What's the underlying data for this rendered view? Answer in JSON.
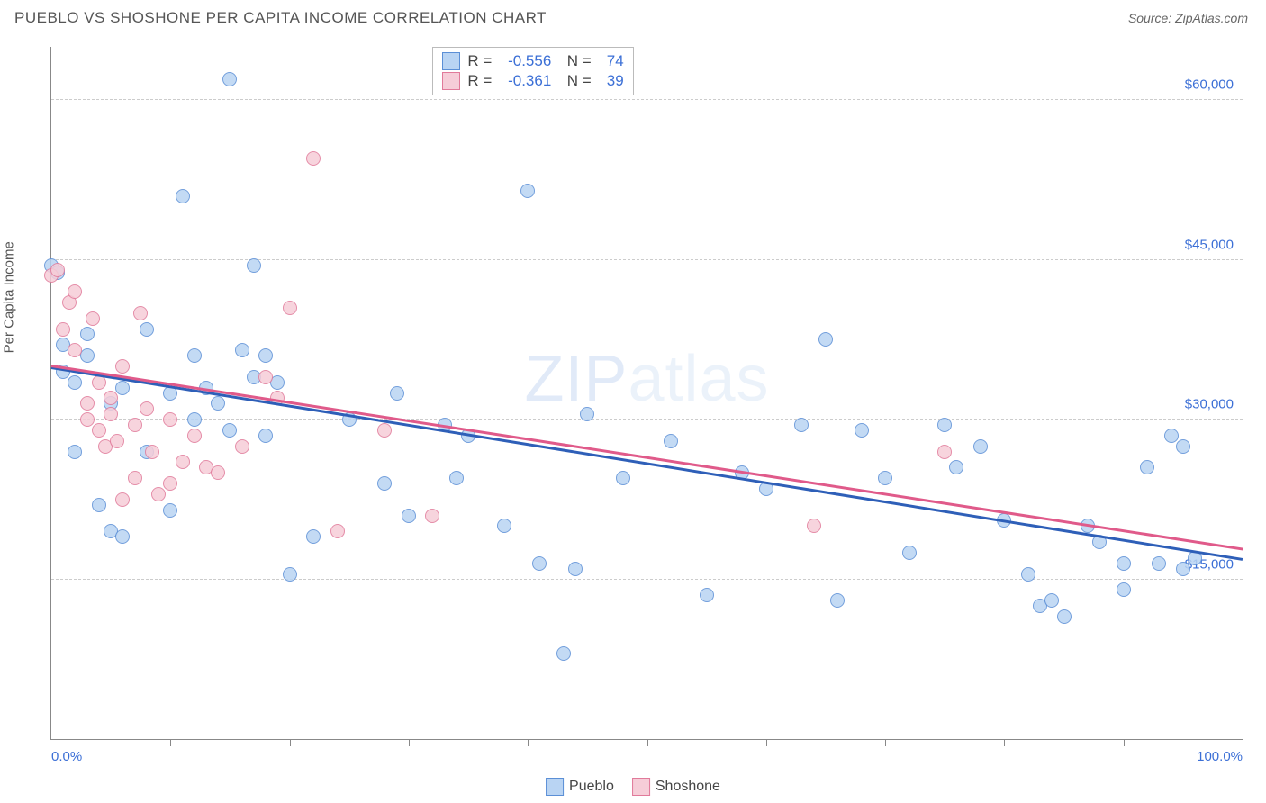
{
  "title": "PUEBLO VS SHOSHONE PER CAPITA INCOME CORRELATION CHART",
  "source": "Source: ZipAtlas.com",
  "ylabel": "Per Capita Income",
  "watermark_a": "ZIP",
  "watermark_b": "atlas",
  "chart": {
    "type": "scatter",
    "xlim": [
      0,
      100
    ],
    "ylim": [
      0,
      65000
    ],
    "x_min_label": "0.0%",
    "x_max_label": "100.0%",
    "y_ticks": [
      15000,
      30000,
      45000,
      60000
    ],
    "y_tick_labels": [
      "$15,000",
      "$30,000",
      "$45,000",
      "$60,000"
    ],
    "x_tick_positions": [
      10,
      20,
      30,
      40,
      50,
      60,
      70,
      80,
      90
    ],
    "grid_color": "#cccccc",
    "background_color": "#ffffff",
    "axis_label_color": "#3b6fd6",
    "marker_radius": 8,
    "marker_border": 1
  },
  "series": [
    {
      "name": "Pueblo",
      "fill": "#b9d4f3",
      "stroke": "#5b8fd6",
      "trend_color": "#2e5fb8",
      "R": "-0.556",
      "N": "74",
      "trend": {
        "x1": 0,
        "y1": 35000,
        "x2": 100,
        "y2": 17000
      },
      "points": [
        [
          0,
          44500
        ],
        [
          0.5,
          43800
        ],
        [
          1,
          37000
        ],
        [
          1,
          34500
        ],
        [
          2,
          33500
        ],
        [
          2,
          27000
        ],
        [
          3,
          36000
        ],
        [
          3,
          38000
        ],
        [
          4,
          22000
        ],
        [
          5,
          19500
        ],
        [
          5,
          31500
        ],
        [
          6,
          33000
        ],
        [
          6,
          19000
        ],
        [
          8,
          38500
        ],
        [
          8,
          27000
        ],
        [
          10,
          32500
        ],
        [
          10,
          21500
        ],
        [
          11,
          51000
        ],
        [
          12,
          36000
        ],
        [
          12,
          30000
        ],
        [
          13,
          33000
        ],
        [
          14,
          31500
        ],
        [
          15,
          62000
        ],
        [
          15,
          29000
        ],
        [
          16,
          36500
        ],
        [
          17,
          44500
        ],
        [
          17,
          34000
        ],
        [
          18,
          28500
        ],
        [
          18,
          36000
        ],
        [
          19,
          33500
        ],
        [
          20,
          15500
        ],
        [
          22,
          19000
        ],
        [
          25,
          30000
        ],
        [
          28,
          24000
        ],
        [
          29,
          32500
        ],
        [
          30,
          21000
        ],
        [
          33,
          29500
        ],
        [
          34,
          24500
        ],
        [
          35,
          28500
        ],
        [
          38,
          20000
        ],
        [
          40,
          51500
        ],
        [
          41,
          16500
        ],
        [
          43,
          8000
        ],
        [
          44,
          16000
        ],
        [
          45,
          30500
        ],
        [
          48,
          24500
        ],
        [
          52,
          28000
        ],
        [
          55,
          13500
        ],
        [
          58,
          25000
        ],
        [
          60,
          23500
        ],
        [
          63,
          29500
        ],
        [
          65,
          37500
        ],
        [
          66,
          13000
        ],
        [
          68,
          29000
        ],
        [
          70,
          24500
        ],
        [
          72,
          17500
        ],
        [
          75,
          29500
        ],
        [
          76,
          25500
        ],
        [
          78,
          27500
        ],
        [
          80,
          20500
        ],
        [
          82,
          15500
        ],
        [
          83,
          12500
        ],
        [
          84,
          13000
        ],
        [
          85,
          11500
        ],
        [
          87,
          20000
        ],
        [
          88,
          18500
        ],
        [
          90,
          16500
        ],
        [
          90,
          14000
        ],
        [
          92,
          25500
        ],
        [
          93,
          16500
        ],
        [
          94,
          28500
        ],
        [
          95,
          16000
        ],
        [
          95,
          27500
        ],
        [
          96,
          17000
        ]
      ]
    },
    {
      "name": "Shoshone",
      "fill": "#f6cdd8",
      "stroke": "#e17a9a",
      "trend_color": "#e05a8a",
      "R": "-0.361",
      "N": "39",
      "trend": {
        "x1": 0,
        "y1": 35200,
        "x2": 100,
        "y2": 18000
      },
      "points": [
        [
          0,
          43500
        ],
        [
          0.5,
          44000
        ],
        [
          1,
          38500
        ],
        [
          1.5,
          41000
        ],
        [
          2,
          36500
        ],
        [
          2,
          42000
        ],
        [
          3,
          30000
        ],
        [
          3,
          31500
        ],
        [
          3.5,
          39500
        ],
        [
          4,
          33500
        ],
        [
          4,
          29000
        ],
        [
          4.5,
          27500
        ],
        [
          5,
          32000
        ],
        [
          5,
          30500
        ],
        [
          5.5,
          28000
        ],
        [
          6,
          35000
        ],
        [
          6,
          22500
        ],
        [
          7,
          29500
        ],
        [
          7,
          24500
        ],
        [
          7.5,
          40000
        ],
        [
          8,
          31000
        ],
        [
          8.5,
          27000
        ],
        [
          9,
          23000
        ],
        [
          10,
          24000
        ],
        [
          10,
          30000
        ],
        [
          11,
          26000
        ],
        [
          12,
          28500
        ],
        [
          13,
          25500
        ],
        [
          14,
          25000
        ],
        [
          16,
          27500
        ],
        [
          18,
          34000
        ],
        [
          19,
          32000
        ],
        [
          20,
          40500
        ],
        [
          22,
          54500
        ],
        [
          24,
          19500
        ],
        [
          28,
          29000
        ],
        [
          32,
          21000
        ],
        [
          64,
          20000
        ],
        [
          75,
          27000
        ]
      ]
    }
  ],
  "legend_items": [
    {
      "label": "Pueblo",
      "fill": "#b9d4f3",
      "stroke": "#5b8fd6"
    },
    {
      "label": "Shoshone",
      "fill": "#f6cdd8",
      "stroke": "#e17a9a"
    }
  ]
}
